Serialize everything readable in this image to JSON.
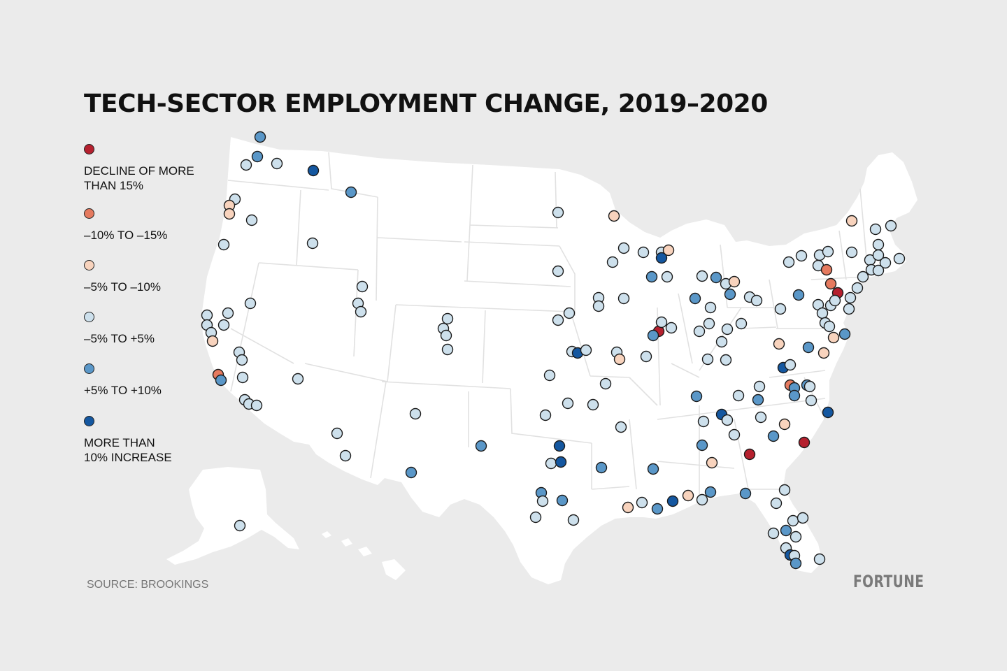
{
  "title": "TECH-SECTOR EMPLOYMENT CHANGE, 2019–2020",
  "source": "SOURCE: BROOKINGS",
  "brand": "FORTUNE",
  "legend": [
    {
      "key": "d15",
      "label": "DECLINE OF MORE\nTHAN 15%",
      "color": "#b5202e"
    },
    {
      "key": "d10",
      "label": "–10% TO –15%",
      "color": "#e57a5f"
    },
    {
      "key": "d5",
      "label": "–5% TO –10%",
      "color": "#f8d3bd"
    },
    {
      "key": "flat",
      "label": "–5% TO +5%",
      "color": "#cde0ec"
    },
    {
      "key": "up5",
      "label": "+5% TO +10%",
      "color": "#5a97c8"
    },
    {
      "key": "up10",
      "label": "MORE THAN\n10% INCREASE",
      "color": "#1457a0"
    }
  ],
  "metros": [
    {
      "region": "seattle",
      "points": [
        [
          372,
          196,
          "up5"
        ],
        [
          368,
          224,
          "up5"
        ],
        [
          352,
          236,
          "flat"
        ],
        [
          396,
          234,
          "flat"
        ],
        [
          448,
          244,
          "up10"
        ],
        [
          502,
          275,
          "up5"
        ]
      ]
    },
    {
      "region": "portland-oregon",
      "points": [
        [
          336,
          285,
          "flat"
        ],
        [
          328,
          294,
          "d5"
        ],
        [
          328,
          306,
          "d5"
        ],
        [
          360,
          315,
          "flat"
        ],
        [
          320,
          350,
          "flat"
        ],
        [
          447,
          348,
          "flat"
        ]
      ]
    },
    {
      "region": "california",
      "points": [
        [
          296,
          451,
          "flat"
        ],
        [
          326,
          448,
          "flat"
        ],
        [
          358,
          434,
          "flat"
        ],
        [
          296,
          465,
          "flat"
        ],
        [
          320,
          465,
          "flat"
        ],
        [
          302,
          476,
          "flat"
        ],
        [
          304,
          488,
          "d5"
        ],
        [
          342,
          504,
          "flat"
        ],
        [
          346,
          515,
          "flat"
        ],
        [
          312,
          536,
          "d10"
        ],
        [
          316,
          544,
          "up5"
        ],
        [
          347,
          540,
          "flat"
        ],
        [
          426,
          542,
          "flat"
        ],
        [
          350,
          572,
          "flat"
        ],
        [
          356,
          578,
          "flat"
        ],
        [
          367,
          580,
          "flat"
        ]
      ]
    },
    {
      "region": "mountain-west",
      "points": [
        [
          518,
          410,
          "flat"
        ],
        [
          512,
          434,
          "flat"
        ],
        [
          516,
          446,
          "flat"
        ],
        [
          640,
          456,
          "flat"
        ],
        [
          634,
          470,
          "flat"
        ],
        [
          638,
          480,
          "flat"
        ],
        [
          640,
          500,
          "flat"
        ],
        [
          594,
          592,
          "flat"
        ],
        [
          482,
          620,
          "flat"
        ],
        [
          494,
          652,
          "flat"
        ],
        [
          588,
          676,
          "up5"
        ]
      ]
    },
    {
      "region": "alaska",
      "points": [
        [
          343,
          752,
          "flat"
        ]
      ]
    },
    {
      "region": "plains",
      "points": [
        [
          798,
          304,
          "flat"
        ],
        [
          878,
          309,
          "d5"
        ],
        [
          798,
          388,
          "flat"
        ],
        [
          814,
          448,
          "flat"
        ],
        [
          798,
          458,
          "flat"
        ],
        [
          856,
          426,
          "flat"
        ],
        [
          856,
          438,
          "flat"
        ],
        [
          892,
          427,
          "flat"
        ],
        [
          876,
          375,
          "flat"
        ],
        [
          892,
          355,
          "flat"
        ],
        [
          818,
          503,
          "flat"
        ],
        [
          826,
          505,
          "up10"
        ],
        [
          838,
          501,
          "flat"
        ],
        [
          882,
          504,
          "flat"
        ],
        [
          886,
          514,
          "d5"
        ],
        [
          924,
          510,
          "flat"
        ],
        [
          786,
          537,
          "flat"
        ],
        [
          866,
          549,
          "flat"
        ]
      ]
    },
    {
      "region": "texas-oklahoma",
      "points": [
        [
          812,
          577,
          "flat"
        ],
        [
          848,
          579,
          "flat"
        ],
        [
          780,
          594,
          "flat"
        ],
        [
          888,
          611,
          "flat"
        ],
        [
          688,
          638,
          "up5"
        ],
        [
          800,
          638,
          "up10"
        ],
        [
          788,
          663,
          "flat"
        ],
        [
          802,
          661,
          "up10"
        ],
        [
          860,
          669,
          "up5"
        ],
        [
          934,
          671,
          "up5"
        ],
        [
          774,
          705,
          "up5"
        ],
        [
          776,
          717,
          "flat"
        ],
        [
          804,
          716,
          "up5"
        ],
        [
          766,
          740,
          "flat"
        ],
        [
          820,
          744,
          "flat"
        ]
      ]
    },
    {
      "region": "gulf-coast",
      "points": [
        [
          898,
          726,
          "d5"
        ],
        [
          918,
          719,
          "flat"
        ],
        [
          940,
          728,
          "up5"
        ],
        [
          962,
          717,
          "up10"
        ],
        [
          984,
          709,
          "d5"
        ],
        [
          1004,
          715,
          "flat"
        ],
        [
          1016,
          704,
          "up5"
        ],
        [
          1066,
          706,
          "up5"
        ]
      ]
    },
    {
      "region": "chicago-midwest",
      "points": [
        [
          920,
          361,
          "flat"
        ],
        [
          946,
          361,
          "flat"
        ],
        [
          956,
          358,
          "d5"
        ],
        [
          946,
          369,
          "up10"
        ],
        [
          932,
          396,
          "up5"
        ],
        [
          954,
          396,
          "flat"
        ],
        [
          942,
          474,
          "d15"
        ],
        [
          934,
          480,
          "up5"
        ],
        [
          946,
          461,
          "flat"
        ],
        [
          960,
          469,
          "flat"
        ],
        [
          994,
          427,
          "up5"
        ],
        [
          1004,
          395,
          "flat"
        ],
        [
          1024,
          397,
          "up5"
        ],
        [
          1038,
          406,
          "flat"
        ],
        [
          1050,
          403,
          "d5"
        ],
        [
          1044,
          421,
          "up5"
        ],
        [
          1016,
          440,
          "flat"
        ],
        [
          1014,
          463,
          "flat"
        ],
        [
          1000,
          474,
          "flat"
        ],
        [
          1040,
          471,
          "flat"
        ],
        [
          1060,
          463,
          "flat"
        ],
        [
          1032,
          489,
          "flat"
        ],
        [
          1072,
          425,
          "flat"
        ],
        [
          1082,
          430,
          "flat"
        ],
        [
          1012,
          514,
          "flat"
        ],
        [
          1038,
          515,
          "flat"
        ]
      ]
    },
    {
      "region": "southeast",
      "points": [
        [
          1116,
          442,
          "flat"
        ],
        [
          1114,
          492,
          "d5"
        ],
        [
          1156,
          497,
          "up5"
        ],
        [
          1120,
          526,
          "up10"
        ],
        [
          1130,
          522,
          "flat"
        ],
        [
          1086,
          553,
          "flat"
        ],
        [
          1130,
          551,
          "d10"
        ],
        [
          1136,
          555,
          "up5"
        ],
        [
          1154,
          551,
          "up5"
        ],
        [
          1158,
          553,
          "flat"
        ],
        [
          1136,
          566,
          "up5"
        ],
        [
          1160,
          573,
          "flat"
        ],
        [
          1084,
          572,
          "up5"
        ],
        [
          1056,
          566,
          "flat"
        ],
        [
          996,
          567,
          "up5"
        ],
        [
          1032,
          593,
          "up10"
        ],
        [
          1006,
          603,
          "flat"
        ],
        [
          1040,
          601,
          "flat"
        ],
        [
          1088,
          597,
          "flat"
        ],
        [
          1050,
          622,
          "flat"
        ],
        [
          1122,
          607,
          "d5"
        ],
        [
          1106,
          624,
          "up5"
        ],
        [
          1150,
          633,
          "d15"
        ],
        [
          1072,
          650,
          "d15"
        ],
        [
          1004,
          637,
          "up5"
        ],
        [
          1018,
          662,
          "d5"
        ],
        [
          1184,
          590,
          "up10"
        ]
      ]
    },
    {
      "region": "florida",
      "points": [
        [
          1122,
          701,
          "flat"
        ],
        [
          1110,
          720,
          "flat"
        ],
        [
          1134,
          745,
          "flat"
        ],
        [
          1148,
          741,
          "flat"
        ],
        [
          1106,
          763,
          "flat"
        ],
        [
          1124,
          759,
          "up5"
        ],
        [
          1138,
          768,
          "flat"
        ],
        [
          1124,
          784,
          "flat"
        ],
        [
          1130,
          794,
          "up10"
        ],
        [
          1136,
          795,
          "flat"
        ],
        [
          1138,
          806,
          "up5"
        ],
        [
          1172,
          800,
          "flat"
        ]
      ]
    },
    {
      "region": "northeast",
      "points": [
        [
          1218,
          316,
          "d5"
        ],
        [
          1252,
          328,
          "flat"
        ],
        [
          1274,
          323,
          "flat"
        ],
        [
          1256,
          350,
          "flat"
        ],
        [
          1218,
          361,
          "flat"
        ],
        [
          1244,
          372,
          "flat"
        ],
        [
          1256,
          365,
          "flat"
        ],
        [
          1266,
          376,
          "flat"
        ],
        [
          1286,
          370,
          "flat"
        ],
        [
          1246,
          386,
          "flat"
        ],
        [
          1256,
          387,
          "flat"
        ],
        [
          1234,
          396,
          "flat"
        ],
        [
          1226,
          412,
          "flat"
        ],
        [
          1128,
          375,
          "flat"
        ],
        [
          1146,
          366,
          "flat"
        ],
        [
          1172,
          365,
          "flat"
        ],
        [
          1184,
          360,
          "flat"
        ],
        [
          1170,
          380,
          "flat"
        ],
        [
          1182,
          386,
          "d10"
        ],
        [
          1188,
          406,
          "d10"
        ],
        [
          1198,
          419,
          "d15"
        ],
        [
          1142,
          422,
          "up5"
        ],
        [
          1170,
          436,
          "flat"
        ],
        [
          1176,
          448,
          "flat"
        ],
        [
          1188,
          437,
          "flat"
        ],
        [
          1194,
          430,
          "flat"
        ],
        [
          1216,
          426,
          "flat"
        ],
        [
          1214,
          442,
          "flat"
        ],
        [
          1180,
          462,
          "flat"
        ],
        [
          1186,
          467,
          "flat"
        ],
        [
          1208,
          478,
          "up5"
        ],
        [
          1192,
          483,
          "d5"
        ],
        [
          1178,
          505,
          "d5"
        ]
      ]
    }
  ]
}
